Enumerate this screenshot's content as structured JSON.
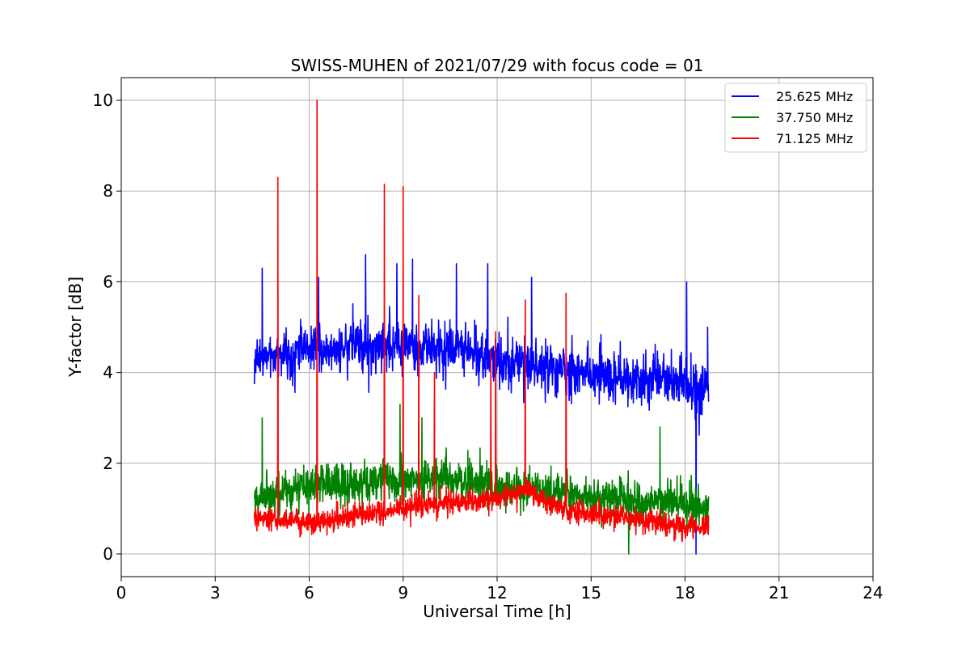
{
  "chart_data": {
    "type": "line",
    "title": "SWISS-MUHEN of 2021/07/29 with focus code = 01",
    "xlabel": "Universal Time [h]",
    "ylabel": "Y-factor [dB]",
    "xlim": [
      0,
      24
    ],
    "ylim": [
      -0.5,
      10.5
    ],
    "xticks": [
      0,
      3,
      6,
      9,
      12,
      15,
      18,
      21,
      24
    ],
    "yticks": [
      0,
      2,
      4,
      6,
      8,
      10
    ],
    "grid": true,
    "legend_position": "top-right",
    "series": [
      {
        "name": "25.625 MHz",
        "color": "#0000ff",
        "x_range": [
          4.25,
          18.75
        ],
        "baseline": [
          [
            4.25,
            4.3
          ],
          [
            6,
            4.5
          ],
          [
            8,
            4.6
          ],
          [
            10,
            4.5
          ],
          [
            12,
            4.3
          ],
          [
            14,
            4.1
          ],
          [
            16,
            3.9
          ],
          [
            18,
            3.8
          ],
          [
            18.5,
            3.5
          ],
          [
            18.75,
            3.6
          ]
        ],
        "noise_amplitude": 0.8,
        "spikes": [
          [
            4.5,
            6.3
          ],
          [
            6.3,
            6.1
          ],
          [
            7.8,
            6.6
          ],
          [
            8.8,
            6.4
          ],
          [
            9.3,
            6.5
          ],
          [
            10.7,
            6.4
          ],
          [
            11.7,
            6.4
          ],
          [
            13.1,
            6.1
          ],
          [
            18.05,
            6.0
          ],
          [
            18.35,
            0.0
          ],
          [
            18.72,
            5.0
          ]
        ]
      },
      {
        "name": "37.750 MHz",
        "color": "#008000",
        "x_range": [
          4.25,
          18.75
        ],
        "baseline": [
          [
            4.25,
            1.2
          ],
          [
            6,
            1.5
          ],
          [
            8,
            1.6
          ],
          [
            10,
            1.7
          ],
          [
            12,
            1.5
          ],
          [
            14,
            1.3
          ],
          [
            16,
            1.2
          ],
          [
            18,
            1.1
          ],
          [
            18.75,
            1.0
          ]
        ],
        "noise_amplitude": 0.6,
        "spikes": [
          [
            4.5,
            3.0
          ],
          [
            8.9,
            3.3
          ],
          [
            9.6,
            3.0
          ],
          [
            17.2,
            2.8
          ],
          [
            16.2,
            0.0
          ]
        ]
      },
      {
        "name": "71.125 MHz",
        "color": "#ff0000",
        "x_range": [
          4.25,
          18.75
        ],
        "baseline": [
          [
            4.25,
            0.8
          ],
          [
            6,
            0.7
          ],
          [
            8,
            0.9
          ],
          [
            10,
            1.1
          ],
          [
            12,
            1.2
          ],
          [
            13,
            1.4
          ],
          [
            14,
            1.0
          ],
          [
            16,
            0.8
          ],
          [
            18,
            0.6
          ],
          [
            18.75,
            0.6
          ]
        ],
        "noise_amplitude": 0.35,
        "spikes": [
          [
            5.0,
            8.3
          ],
          [
            6.25,
            10.0
          ],
          [
            8.4,
            8.15
          ],
          [
            9.0,
            8.1
          ],
          [
            9.5,
            5.7
          ],
          [
            10.0,
            4.0
          ],
          [
            11.8,
            4.5
          ],
          [
            11.95,
            4.9
          ],
          [
            12.9,
            5.6
          ],
          [
            14.2,
            5.75
          ]
        ]
      }
    ]
  }
}
